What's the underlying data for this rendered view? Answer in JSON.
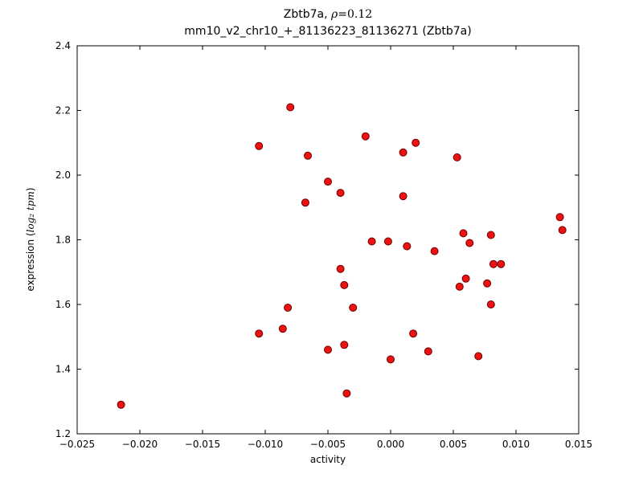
{
  "title": {
    "line1_prefix": "Zbtb7a, ",
    "line1_rho": "ρ",
    "line1_value": "=0.12",
    "line2": "mm10_v2_chr10_+_81136223_81136271 (Zbtb7a)"
  },
  "ylabel_parts": {
    "prefix": "expression (",
    "math": "log₂ tpm",
    "suffix": ")"
  },
  "chart_data": {
    "type": "scatter",
    "title": "Zbtb7a, ρ=0.12\nmm10_v2_chr10_+_81136223_81136271 (Zbtb7a)",
    "xlabel": "activity",
    "ylabel": "expression (log₂ tpm)",
    "xlim": [
      -0.025,
      0.015
    ],
    "ylim": [
      1.2,
      2.4
    ],
    "grid": false,
    "legend": "none",
    "marker_color": "#ee1111",
    "marker_edge_color": "#6b0000",
    "xtick_values": [
      -0.025,
      -0.02,
      -0.015,
      -0.01,
      -0.005,
      0.0,
      0.005,
      0.01,
      0.015
    ],
    "xtick_labels": [
      "−0.025",
      "−0.020",
      "−0.015",
      "−0.010",
      "−0.005",
      "0.000",
      "0.005",
      "0.010",
      "0.015"
    ],
    "ytick_values": [
      1.2,
      1.4,
      1.6,
      1.8,
      2.0,
      2.2,
      2.4
    ],
    "ytick_labels": [
      "1.2",
      "1.4",
      "1.6",
      "1.8",
      "2.0",
      "2.2",
      "2.4"
    ],
    "points": [
      [
        -0.0215,
        1.29
      ],
      [
        -0.0105,
        2.09
      ],
      [
        -0.0105,
        1.51
      ],
      [
        -0.0086,
        1.525
      ],
      [
        -0.0082,
        1.59
      ],
      [
        -0.008,
        2.21
      ],
      [
        -0.0066,
        2.06
      ],
      [
        -0.0068,
        1.915
      ],
      [
        -0.005,
        1.98
      ],
      [
        -0.005,
        1.46
      ],
      [
        -0.004,
        1.945
      ],
      [
        -0.004,
        1.71
      ],
      [
        -0.0037,
        1.475
      ],
      [
        -0.0037,
        1.66
      ],
      [
        -0.003,
        1.59
      ],
      [
        -0.0035,
        1.325
      ],
      [
        -0.002,
        2.12
      ],
      [
        -0.0015,
        1.795
      ],
      [
        -0.0002,
        1.795
      ],
      [
        0.0,
        1.43
      ],
      [
        0.001,
        2.07
      ],
      [
        0.001,
        1.935
      ],
      [
        0.0013,
        1.78
      ],
      [
        0.0018,
        1.51
      ],
      [
        0.002,
        2.1
      ],
      [
        0.003,
        1.455
      ],
      [
        0.0035,
        1.765
      ],
      [
        0.0053,
        2.055
      ],
      [
        0.0055,
        1.655
      ],
      [
        0.0058,
        1.82
      ],
      [
        0.006,
        1.68
      ],
      [
        0.0063,
        1.79
      ],
      [
        0.007,
        1.44
      ],
      [
        0.0077,
        1.665
      ],
      [
        0.008,
        1.815
      ],
      [
        0.008,
        1.6
      ],
      [
        0.0082,
        1.725
      ],
      [
        0.0088,
        1.725
      ],
      [
        0.0135,
        1.87
      ],
      [
        0.0137,
        1.83
      ]
    ]
  }
}
